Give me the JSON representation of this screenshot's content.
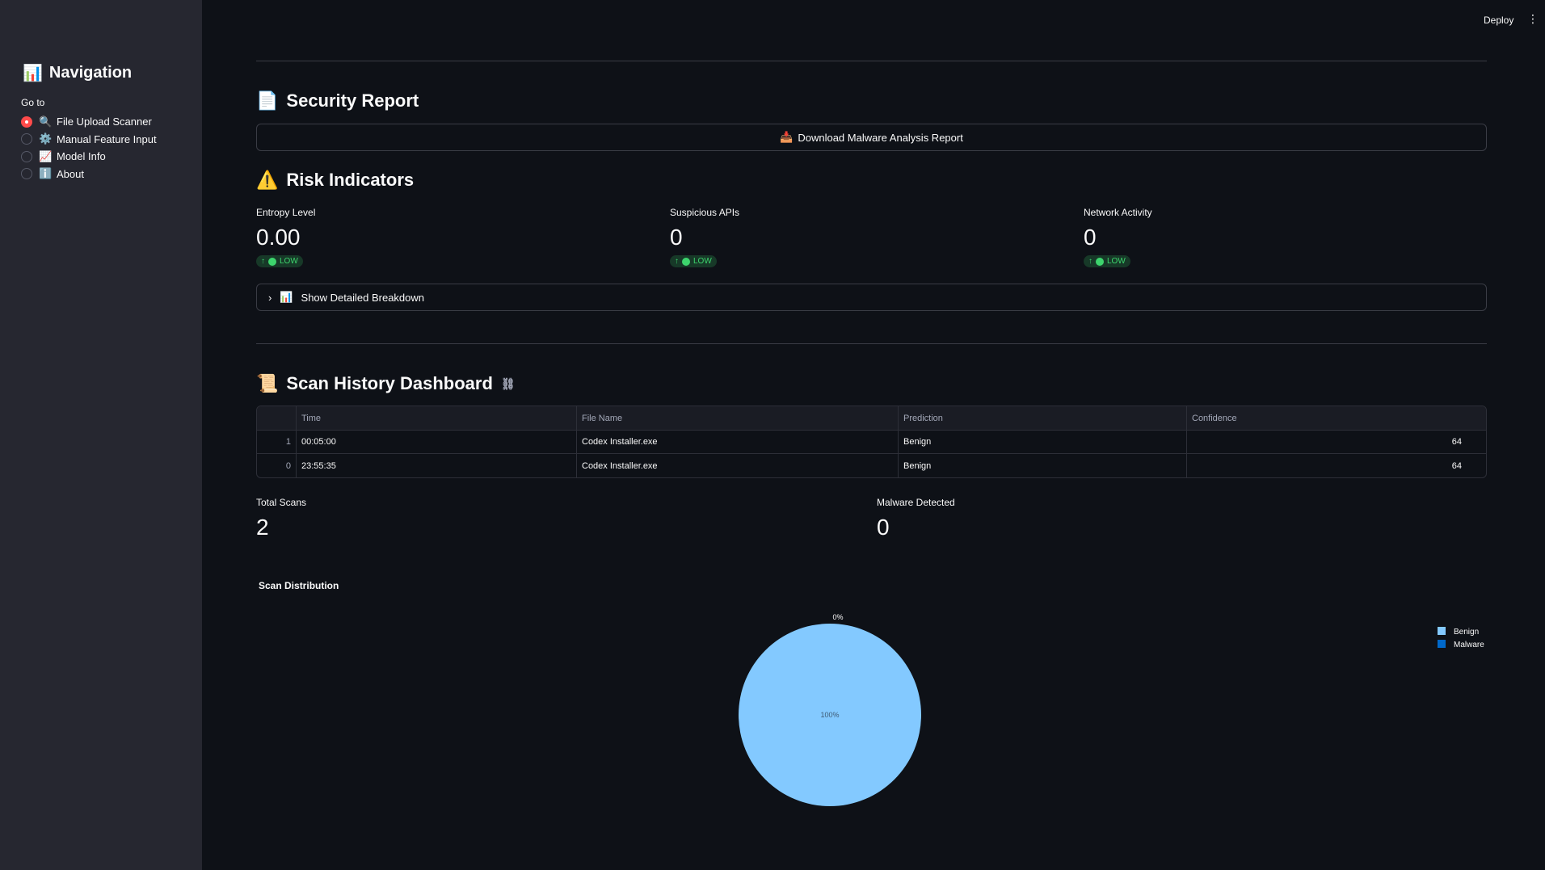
{
  "sidebar": {
    "title": "Navigation",
    "goto_label": "Go to",
    "items": [
      {
        "label": "File Upload Scanner",
        "icon": "🔍",
        "selected": true
      },
      {
        "label": "Manual Feature Input",
        "icon": "⚙️",
        "selected": false
      },
      {
        "label": "Model Info",
        "icon": "📈",
        "selected": false
      },
      {
        "label": "About",
        "icon": "ℹ️",
        "selected": false
      }
    ]
  },
  "topbar": {
    "deploy": "Deploy",
    "menu": "⋮"
  },
  "security_report": {
    "title": "Security Report",
    "icon": "📄",
    "download_label": "Download Malware Analysis Report",
    "download_icon": "📥"
  },
  "risk": {
    "title": "Risk Indicators",
    "icon": "⚠️",
    "metrics": [
      {
        "label": "Entropy Level",
        "value": "0.00",
        "delta": "LOW"
      },
      {
        "label": "Suspicious APIs",
        "value": "0",
        "delta": "LOW"
      },
      {
        "label": "Network Activity",
        "value": "0",
        "delta": "LOW"
      }
    ],
    "expander_label": "Show Detailed Breakdown",
    "expander_icon": "📊"
  },
  "history": {
    "title": "Scan History Dashboard",
    "icon": "📜",
    "columns": [
      "",
      "Time",
      "File Name",
      "Prediction",
      "Confidence"
    ],
    "rows": [
      {
        "idx": "1",
        "time": "00:05:00",
        "file": "Codex Installer.exe",
        "pred": "Benign",
        "conf": "64"
      },
      {
        "idx": "0",
        "time": "23:55:35",
        "file": "Codex Installer.exe",
        "pred": "Benign",
        "conf": "64"
      }
    ],
    "total_scans_label": "Total Scans",
    "total_scans": "2",
    "malware_label": "Malware Detected",
    "malware": "0"
  },
  "chart_title": "Scan Distribution",
  "chart_data": {
    "type": "pie",
    "title": "Scan Distribution",
    "categories": [
      "Benign",
      "Malware"
    ],
    "values": [
      100,
      0
    ],
    "labels": [
      "100%",
      "0%"
    ],
    "colors": [
      "#83c9ff",
      "#0068c9"
    ],
    "legend": "top-right"
  }
}
